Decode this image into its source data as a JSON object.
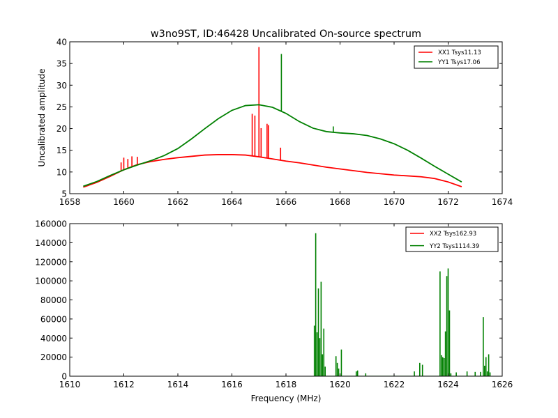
{
  "chart_data": [
    {
      "type": "line",
      "title": "w3no9ST, ID:46428 Uncalibrated On-source spectrum",
      "xlabel": "",
      "ylabel": "Uncalibrated amplitude",
      "xlim": [
        1658,
        1674
      ],
      "ylim": [
        5,
        40
      ],
      "x_ticks": [
        1658,
        1660,
        1662,
        1664,
        1666,
        1668,
        1670,
        1672,
        1674
      ],
      "y_ticks": [
        5,
        10,
        15,
        20,
        25,
        30,
        35,
        40
      ],
      "legend_position": "top-right",
      "series": [
        {
          "name": "XX1 Tsys11.13",
          "color": "#ff0000",
          "x": [
            1658.5,
            1659.0,
            1659.5,
            1660.0,
            1660.5,
            1661.0,
            1661.5,
            1662.0,
            1662.5,
            1663.0,
            1663.5,
            1664.0,
            1664.5,
            1665.0,
            1665.5,
            1666.0,
            1666.5,
            1667.0,
            1667.5,
            1668.0,
            1668.5,
            1669.0,
            1669.5,
            1670.0,
            1670.5,
            1671.0,
            1671.5,
            1672.0,
            1672.5
          ],
          "values": [
            6.5,
            7.6,
            9.0,
            10.5,
            11.7,
            12.4,
            12.9,
            13.3,
            13.6,
            13.9,
            14.0,
            14.0,
            13.9,
            13.5,
            13.0,
            12.5,
            12.1,
            11.6,
            11.1,
            10.7,
            10.3,
            9.9,
            9.6,
            9.3,
            9.1,
            8.9,
            8.5,
            7.7,
            6.6
          ],
          "spikes": [
            {
              "x": 1659.9,
              "y": 12.2
            },
            {
              "x": 1660.0,
              "y": 13.3
            },
            {
              "x": 1660.15,
              "y": 13.0
            },
            {
              "x": 1660.3,
              "y": 13.6
            },
            {
              "x": 1660.5,
              "y": 13.5
            },
            {
              "x": 1664.75,
              "y": 23.4
            },
            {
              "x": 1664.85,
              "y": 23.0
            },
            {
              "x": 1665.0,
              "y": 38.8
            },
            {
              "x": 1665.08,
              "y": 20.1
            },
            {
              "x": 1665.3,
              "y": 21.1
            },
            {
              "x": 1665.35,
              "y": 20.8
            },
            {
              "x": 1665.8,
              "y": 15.6
            }
          ]
        },
        {
          "name": "YY1 Tsys17.06",
          "color": "#008000",
          "x": [
            1658.5,
            1659.0,
            1659.5,
            1660.0,
            1660.5,
            1661.0,
            1661.5,
            1662.0,
            1662.5,
            1663.0,
            1663.5,
            1664.0,
            1664.5,
            1665.0,
            1665.5,
            1666.0,
            1666.5,
            1667.0,
            1667.5,
            1668.0,
            1668.5,
            1669.0,
            1669.5,
            1670.0,
            1670.5,
            1671.0,
            1671.5,
            1672.0,
            1672.5
          ],
          "values": [
            6.7,
            7.8,
            9.2,
            10.5,
            11.6,
            12.6,
            13.8,
            15.4,
            17.6,
            20.0,
            22.3,
            24.2,
            25.3,
            25.5,
            24.9,
            23.5,
            21.6,
            20.1,
            19.3,
            19.0,
            18.8,
            18.4,
            17.6,
            16.5,
            15.0,
            13.2,
            11.3,
            9.5,
            7.7
          ],
          "spikes": [
            {
              "x": 1665.83,
              "y": 37.2
            },
            {
              "x": 1667.75,
              "y": 20.5
            }
          ]
        }
      ]
    },
    {
      "type": "line",
      "title": "",
      "xlabel": "Frequency (MHz)",
      "ylabel": "",
      "xlim": [
        1610,
        1626
      ],
      "ylim": [
        0,
        160000
      ],
      "x_ticks": [
        1610,
        1612,
        1614,
        1616,
        1618,
        1620,
        1622,
        1624,
        1626
      ],
      "y_ticks": [
        0,
        20000,
        40000,
        60000,
        80000,
        100000,
        120000,
        140000,
        160000
      ],
      "legend_position": "top-right",
      "series": [
        {
          "name": "XX2 Tsys162.93",
          "color": "#ff0000",
          "x": [],
          "values": []
        },
        {
          "name": "YY2 Tsys1114.39",
          "color": "#008000",
          "x": [
            1619.05,
            1619.1,
            1619.15,
            1619.2,
            1619.25,
            1619.3,
            1619.35,
            1619.4,
            1619.45,
            1619.85,
            1619.9,
            1619.95,
            1620.05,
            1620.6,
            1620.65,
            1620.95,
            1622.75,
            1622.95,
            1623.05,
            1623.7,
            1623.75,
            1623.8,
            1623.85,
            1623.9,
            1623.95,
            1624.0,
            1624.05,
            1624.1,
            1624.3,
            1624.7,
            1625.0,
            1625.2,
            1625.3,
            1625.35,
            1625.4,
            1625.45,
            1625.5,
            1625.55
          ],
          "values": [
            53000,
            150000,
            46000,
            92000,
            40000,
            99000,
            23000,
            50000,
            10000,
            21000,
            14000,
            8000,
            28000,
            5000,
            6000,
            3000,
            5000,
            14000,
            12000,
            110000,
            22000,
            20000,
            19000,
            47000,
            105000,
            113000,
            69000,
            3000,
            4000,
            5000,
            4500,
            4500,
            62000,
            11000,
            20000,
            5000,
            23000,
            4000
          ]
        }
      ]
    }
  ]
}
